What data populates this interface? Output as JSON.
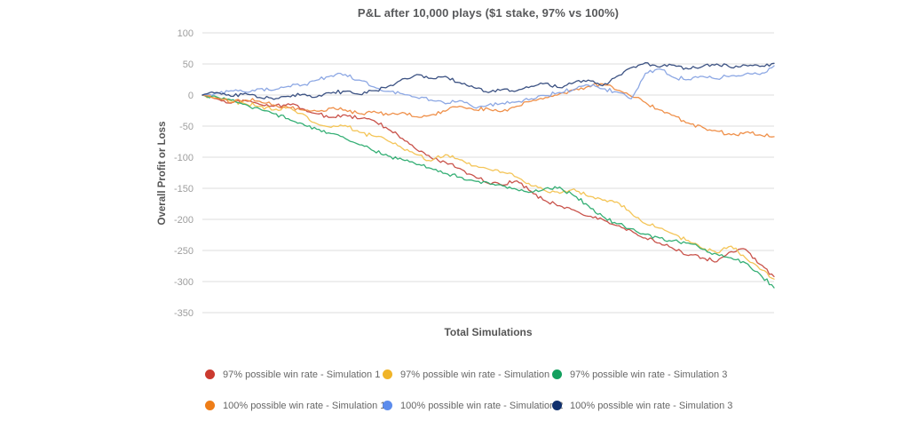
{
  "chart_data": {
    "type": "line",
    "title": "P&L after 10,000 plays ($1 stake, 97% vs 100%)",
    "xlabel": "Total Simulations",
    "ylabel": "Overall Profit or Loss",
    "ylim": [
      -350,
      100
    ],
    "yticks": [
      100,
      50,
      0,
      -50,
      -100,
      -150,
      -200,
      -250,
      -300,
      -350
    ],
    "x_sampling": "41 evenly spaced samples across the simulation run; no x tick labels shown",
    "grid": "horizontal gridlines only",
    "grid_color": "#dcdcdc",
    "legend_position": "bottom, two rows",
    "legend_rows": [
      [
        0,
        1,
        2
      ],
      [
        3,
        4,
        5
      ]
    ],
    "series": [
      {
        "name": "97% possible win rate - Simulation 1",
        "legend_color": "#cb3a2f",
        "line_color": "#c64a41",
        "values": [
          0,
          -6,
          -13,
          -9,
          -15,
          -18,
          -14,
          -22,
          -30,
          -36,
          -32,
          -38,
          -41,
          -55,
          -70,
          -88,
          -101,
          -108,
          -118,
          -130,
          -142,
          -145,
          -138,
          -155,
          -170,
          -178,
          -185,
          -195,
          -200,
          -210,
          -218,
          -230,
          -238,
          -248,
          -258,
          -262,
          -268,
          -252,
          -248,
          -272,
          -292
        ]
      },
      {
        "name": "97% possible win rate - Simulation 2",
        "legend_color": "#f0b428",
        "line_color": "#f3c24f",
        "values": [
          0,
          -4,
          -9,
          -14,
          -18,
          -24,
          -20,
          -30,
          -46,
          -52,
          -49,
          -60,
          -66,
          -74,
          -86,
          -96,
          -106,
          -96,
          -104,
          -114,
          -119,
          -124,
          -132,
          -146,
          -154,
          -158,
          -151,
          -163,
          -169,
          -172,
          -190,
          -207,
          -214,
          -224,
          -234,
          -247,
          -254,
          -243,
          -262,
          -280,
          -296
        ]
      },
      {
        "name": "97% possible win rate - Simulation 3",
        "legend_color": "#13a05e",
        "line_color": "#2aab6e",
        "values": [
          0,
          -3,
          -8,
          -15,
          -22,
          -30,
          -38,
          -46,
          -55,
          -62,
          -70,
          -80,
          -90,
          -98,
          -104,
          -112,
          -118,
          -126,
          -132,
          -138,
          -141,
          -146,
          -152,
          -156,
          -150,
          -148,
          -162,
          -178,
          -195,
          -207,
          -215,
          -224,
          -230,
          -234,
          -238,
          -248,
          -256,
          -262,
          -270,
          -288,
          -310
        ]
      },
      {
        "name": "100% possible win rate - Simulation 1",
        "legend_color": "#ee7d18",
        "line_color": "#ee8a40",
        "values": [
          0,
          -5,
          -12,
          -8,
          -10,
          -16,
          -20,
          -24,
          -26,
          -21,
          -24,
          -30,
          -26,
          -32,
          -28,
          -35,
          -32,
          -26,
          -18,
          -24,
          -22,
          -26,
          -18,
          -10,
          -4,
          2,
          8,
          14,
          18,
          8,
          -2,
          -12,
          -24,
          -33,
          -45,
          -52,
          -58,
          -64,
          -60,
          -64,
          -67
        ]
      },
      {
        "name": "100% possible win rate - Simulation 2",
        "legend_color": "#5c8cec",
        "line_color": "#87a3e3",
        "values": [
          0,
          3,
          7,
          5,
          10,
          8,
          14,
          16,
          24,
          31,
          33,
          24,
          13,
          6,
          2,
          -4,
          -8,
          -14,
          -9,
          -20,
          -16,
          -13,
          -11,
          -6,
          -1,
          4,
          9,
          16,
          10,
          5,
          -6,
          35,
          42,
          28,
          25,
          30,
          26,
          31,
          34,
          33,
          47
        ]
      },
      {
        "name": "100% possible win rate - Simulation 3",
        "legend_color": "#0f2f6d",
        "line_color": "#32497c",
        "values": [
          0,
          4,
          -2,
          3,
          -4,
          -7,
          -2,
          1,
          -3,
          3,
          6,
          1,
          7,
          14,
          26,
          33,
          27,
          30,
          20,
          12,
          4,
          9,
          7,
          14,
          19,
          12,
          20,
          24,
          15,
          30,
          44,
          52,
          45,
          48,
          42,
          46,
          50,
          44,
          48,
          46,
          51
        ]
      }
    ]
  }
}
